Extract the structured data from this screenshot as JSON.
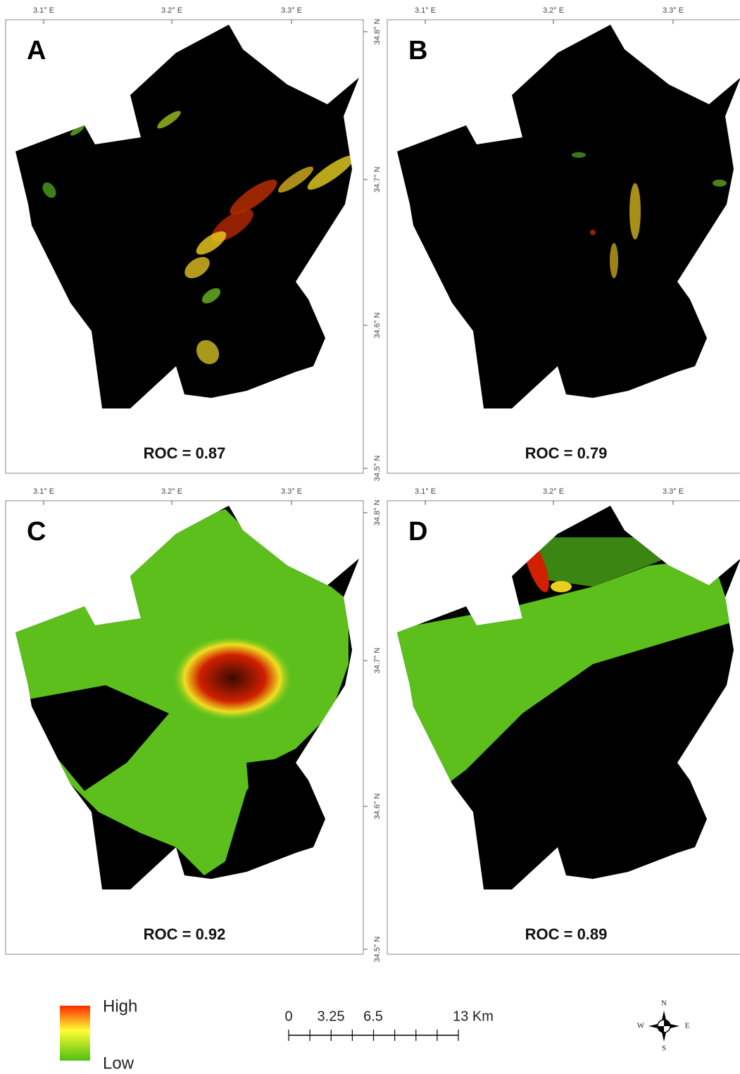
{
  "panels": [
    {
      "label": "A",
      "roc": "ROC = 0.87"
    },
    {
      "label": "B",
      "roc": "ROC = 0.79"
    },
    {
      "label": "C",
      "roc": "ROC = 0.92"
    },
    {
      "label": "D",
      "roc": "ROC = 0.89"
    }
  ],
  "longitude_ticks": [
    "3.1° E",
    "3.2° E",
    "3.3° E"
  ],
  "latitude_ticks": [
    "34.8° N",
    "34.7° N",
    "34.6° N",
    "34.5° N"
  ],
  "legend": {
    "high": "High",
    "low": "Low"
  },
  "scale_bar": {
    "labels": [
      "0",
      "3.25",
      "6.5",
      "13 Km"
    ]
  },
  "compass": {
    "n": "N",
    "s": "S",
    "e": "E",
    "w": "W"
  }
}
